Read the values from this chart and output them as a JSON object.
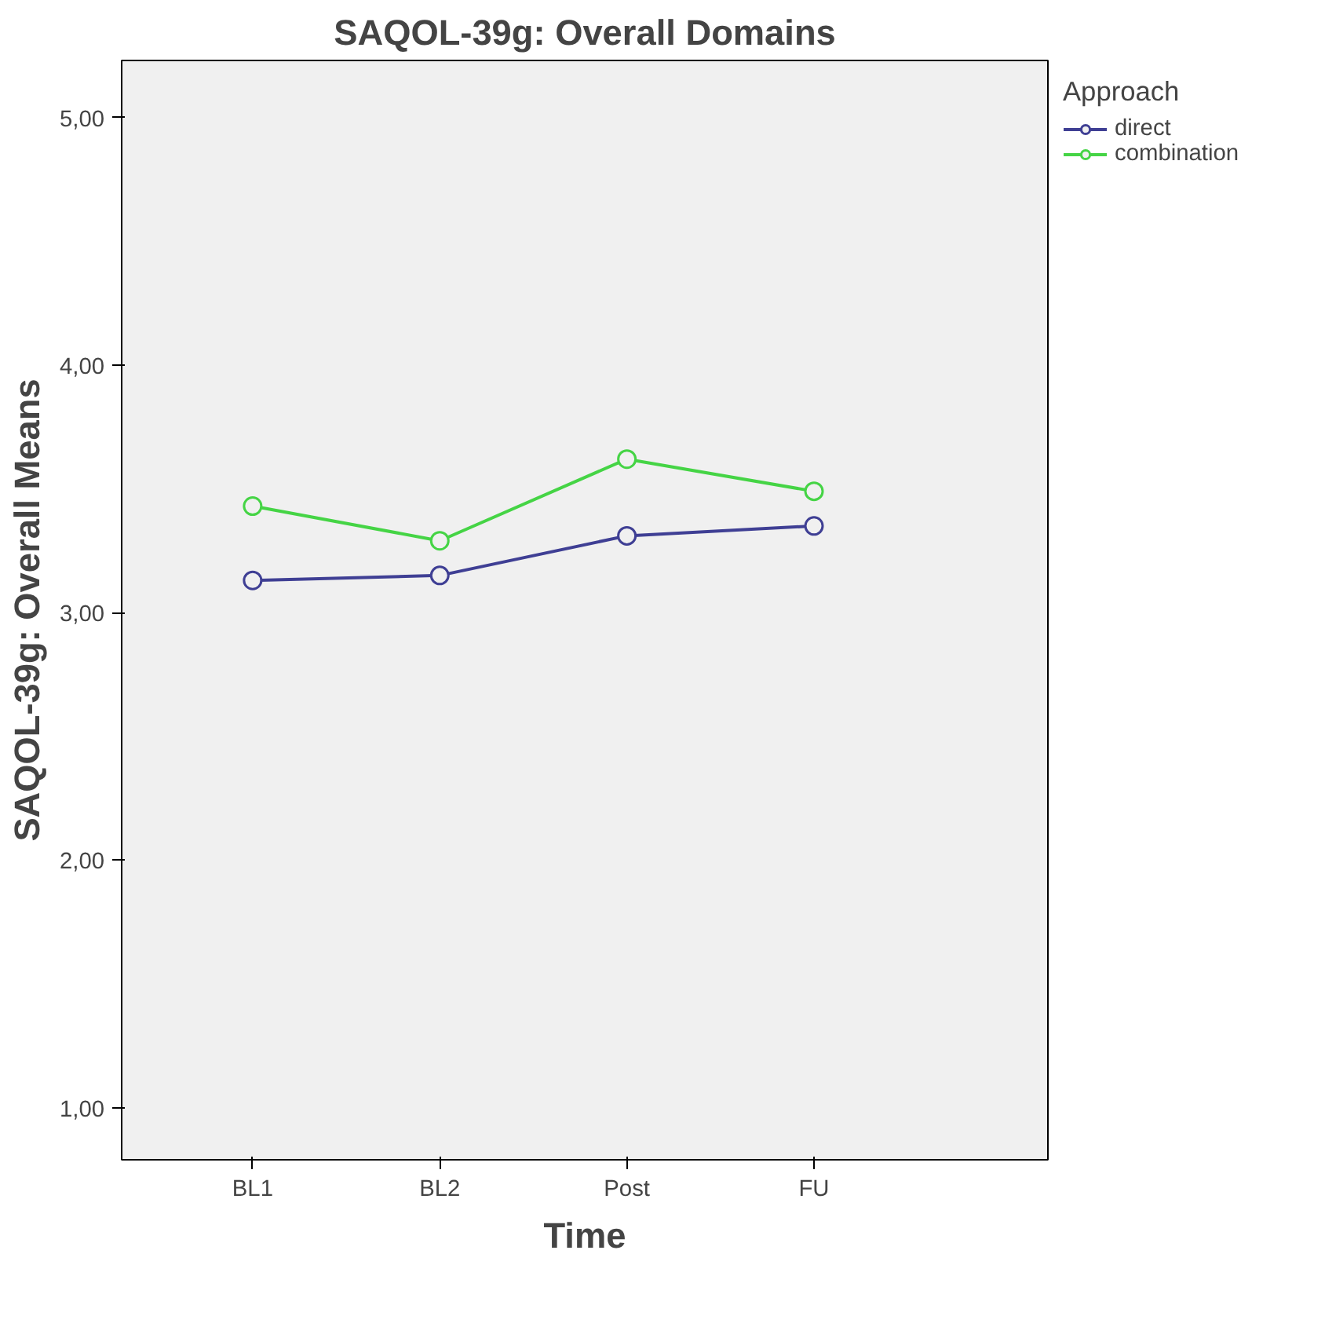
{
  "chart_data": {
    "type": "line",
    "title": "SAQOL-39g: Overall Domains",
    "xlabel": "Time",
    "ylabel": "SAQOL-39g: Overall Means",
    "legend_title": "Approach",
    "categories": [
      "BL1",
      "BL2",
      "Post",
      "FU"
    ],
    "series": [
      {
        "name": "direct",
        "color": "#3f3f94",
        "values": [
          3.13,
          3.15,
          3.31,
          3.35
        ]
      },
      {
        "name": "combination",
        "color": "#45d445",
        "values": [
          3.43,
          3.29,
          3.62,
          3.49
        ]
      }
    ],
    "ylim": [
      0.79,
      5.23
    ],
    "yticks": [
      {
        "value": 1,
        "label": "1,00"
      },
      {
        "value": 2,
        "label": "2,00"
      },
      {
        "value": 3,
        "label": "3,00"
      },
      {
        "value": 4,
        "label": "4,00"
      },
      {
        "value": 5,
        "label": "5,00"
      }
    ],
    "grid": false,
    "legend": "top right",
    "marker": "circle",
    "line_style": "solid"
  }
}
